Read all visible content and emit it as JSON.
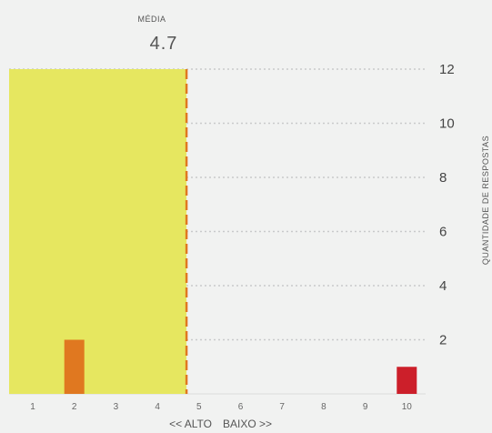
{
  "chart_data": {
    "type": "bar",
    "categories": [
      "1",
      "2",
      "3",
      "4",
      "5",
      "6",
      "7",
      "8",
      "9",
      "10"
    ],
    "values": [
      0,
      2,
      0,
      0,
      0,
      0,
      0,
      0,
      0,
      1
    ],
    "bar_colors": [
      "#e07820",
      "#e07820",
      "#e07820",
      "#e07820",
      "#e07820",
      "#e07820",
      "#e07820",
      "#e07820",
      "#e07820",
      "#cc1f2a"
    ],
    "ylabel": "QUANTIDADE DE RESPOSTAS",
    "xlabel_left": "<< ALTO",
    "xlabel_right": "BAIXO >>",
    "ylim": [
      0,
      12
    ],
    "yticks": [
      2,
      4,
      6,
      8,
      10,
      12
    ],
    "grid": true,
    "mean": {
      "label": "MÉDIA",
      "value": 4.7,
      "display": "4.7",
      "shade_color": "#e6e760",
      "line_color": "#e07820"
    }
  }
}
